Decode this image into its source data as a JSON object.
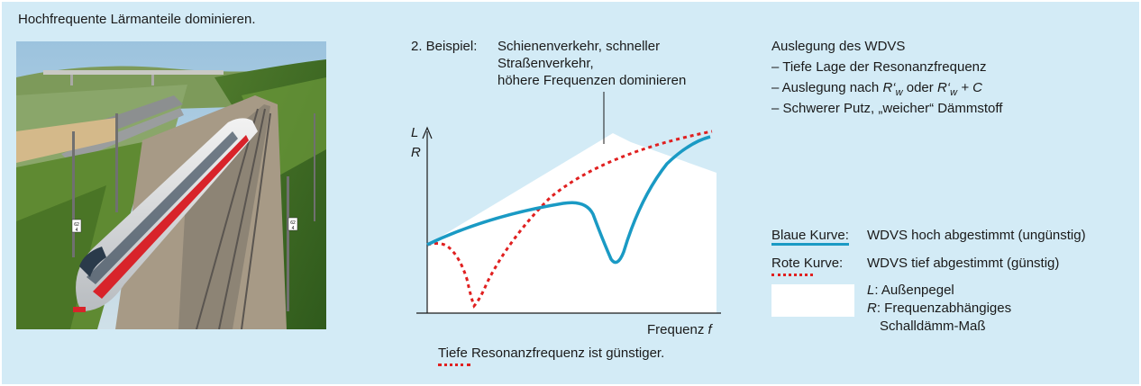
{
  "heading": "Hochfrequente Lärmanteile dominieren.",
  "example": {
    "label": "2. Beispiel:",
    "line1": "Schienenverkehr, schneller",
    "line2": "Straßenverkehr,",
    "line3": "höhere Frequenzen dominieren"
  },
  "design": {
    "title": "Auslegung des WDVS",
    "items": [
      "– Tiefe Lage der Resonanzfrequenz",
      "– Auslegung nach",
      "– Schwerer Putz, „weicher“ Dämmstoff"
    ],
    "formula1": "R‘",
    "formula1_sub": "w",
    "formula_or": "oder",
    "formula2": "R‘",
    "formula2_sub": "w",
    "formula_plus": "+ C"
  },
  "chart": {
    "y_label_1": "L",
    "y_label_2": "R",
    "x_label": "Frequenz",
    "x_symbol": "f",
    "caption_underlined": "Tiefe",
    "caption_rest": " Resonanzfrequenz ist günstiger."
  },
  "legend": {
    "blue_key": "Blaue Kurve:",
    "blue_text": "WDVS hoch abgestimmt (ungünstig)",
    "red_key": "Rote Kurve:",
    "red_text": "WDVS tief abgestimmt (günstig)",
    "l_symbol": "L",
    "l_text": ": Außenpegel",
    "r_symbol": "R",
    "r_text_1": ": Frequenzabhängiges",
    "r_text_2": "Schalldämm-Maß"
  },
  "photo": {
    "signs": [
      "62 4",
      "62 4"
    ]
  },
  "colors": {
    "panel": "#d3ebf6",
    "blue_curve": "#1a9ac4",
    "red_curve": "#e02020",
    "noise_area": "#ffffff"
  }
}
